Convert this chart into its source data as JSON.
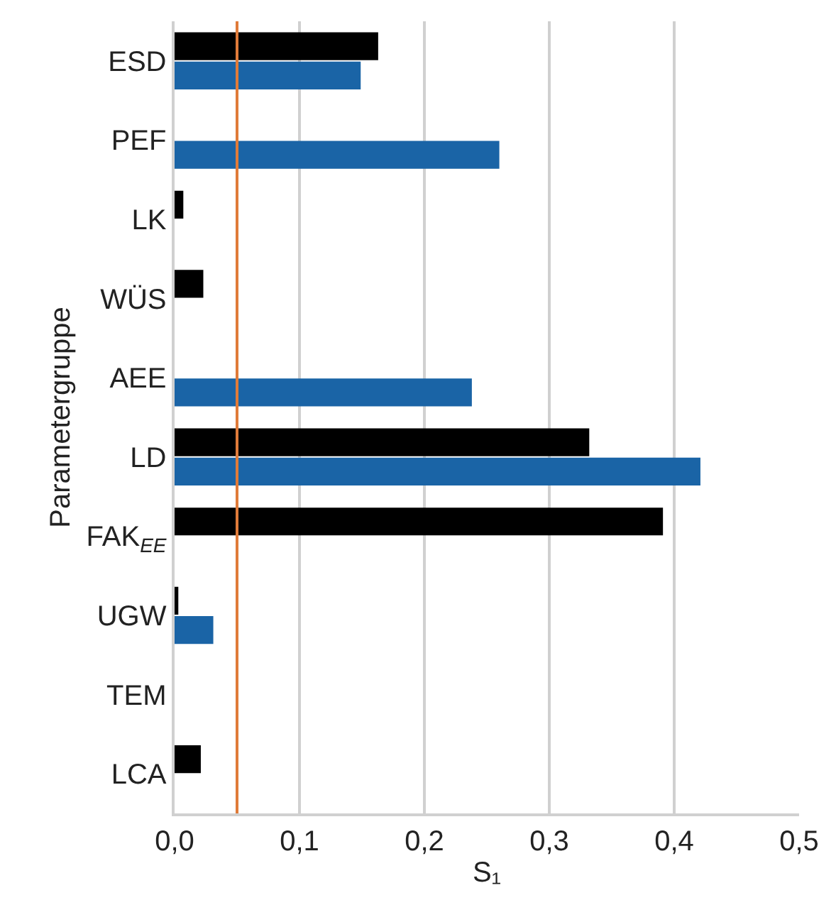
{
  "chart_data": {
    "type": "bar",
    "orientation": "horizontal",
    "xlabel": "S₁",
    "ylabel": "Parametergruppe",
    "categories": [
      "ESD",
      "PEF",
      "LK",
      "WÜS",
      "AEE",
      "LD",
      "FAK$_{EE}$",
      "UGW",
      "TEM",
      "LCA"
    ],
    "series": [
      {
        "color": "#000000",
        "values": [
          0.163,
          null,
          0.007,
          0.023,
          null,
          0.332,
          0.391,
          0.003,
          null,
          0.021
        ]
      },
      {
        "color": "#1a64a6",
        "values": [
          0.149,
          0.26,
          null,
          null,
          0.238,
          0.421,
          null,
          0.031,
          null,
          null
        ]
      }
    ],
    "xlim": [
      0,
      0.5
    ],
    "xticks": [
      {
        "value": 0,
        "label": "0,0"
      },
      {
        "value": 0.1,
        "label": "0,1"
      },
      {
        "value": 0.2,
        "label": "0,2"
      },
      {
        "value": 0.3,
        "label": "0,3"
      },
      {
        "value": 0.4,
        "label": "0,4"
      },
      {
        "value": 0.5,
        "label": "0,5"
      }
    ],
    "ref_lines": [
      {
        "axis": "x",
        "value": 0.05,
        "color": "#e07b39"
      }
    ],
    "grid": "x"
  }
}
